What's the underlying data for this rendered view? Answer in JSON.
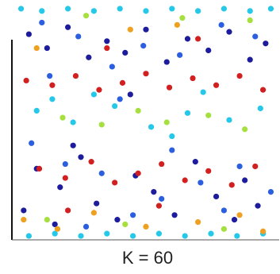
{
  "chart_data": {
    "type": "scatter",
    "title": "K = 60",
    "xlim": [
      0,
      1
    ],
    "ylim": [
      0,
      1
    ],
    "series": [
      {
        "color": "#1c1c9c",
        "x": [
          0.05,
          0.12,
          0.2,
          0.28,
          0.35,
          0.42,
          0.5,
          0.58,
          0.66,
          0.74,
          0.82,
          0.9,
          0.96,
          0.08,
          0.17,
          0.31,
          0.46,
          0.61,
          0.77,
          0.88,
          0.03,
          0.15,
          0.25,
          0.39,
          0.53,
          0.69,
          0.84,
          0.93,
          0.44,
          0.22
        ],
        "values": [
          0.88,
          0.82,
          0.91,
          0.78,
          0.85,
          0.8,
          0.9,
          0.76,
          0.86,
          0.81,
          0.89,
          0.77,
          0.84,
          0.3,
          0.22,
          0.15,
          0.27,
          0.1,
          0.18,
          0.25,
          0.12,
          0.06,
          0.35,
          0.08,
          0.2,
          0.33,
          0.08,
          0.14,
          0.62,
          0.4
        ]
      },
      {
        "color": "#2b5fe0",
        "x": [
          0.1,
          0.24,
          0.37,
          0.49,
          0.63,
          0.79,
          0.92,
          0.06,
          0.19,
          0.33,
          0.56,
          0.71,
          0.86,
          0.98,
          0.27,
          0.45,
          0.6,
          0.8,
          0.13,
          0.4
        ],
        "values": [
          0.93,
          0.87,
          0.74,
          0.83,
          0.79,
          0.92,
          0.87,
          0.41,
          0.32,
          0.28,
          0.17,
          0.24,
          0.31,
          0.2,
          0.05,
          0.1,
          0.38,
          0.12,
          0.7,
          0.6
        ]
      },
      {
        "color": "#25c8e8",
        "x": [
          0.02,
          0.1,
          0.2,
          0.3,
          0.4,
          0.5,
          0.6,
          0.7,
          0.8,
          0.9,
          0.98,
          0.05,
          0.15,
          0.25,
          0.35,
          0.45,
          0.55,
          0.65,
          0.75,
          0.85,
          0.95,
          0.08,
          0.22,
          0.38,
          0.52,
          0.66,
          0.82,
          0.94,
          0.3,
          0.6,
          0.14,
          0.72
        ],
        "values": [
          0.99,
          0.98,
          0.99,
          0.98,
          0.99,
          0.98,
          0.99,
          0.98,
          0.99,
          0.98,
          0.99,
          0.01,
          0.02,
          0.01,
          0.02,
          0.01,
          0.02,
          0.01,
          0.02,
          0.01,
          0.02,
          0.55,
          0.5,
          0.57,
          0.48,
          0.54,
          0.51,
          0.56,
          0.62,
          0.44,
          0.6,
          0.63
        ]
      },
      {
        "color": "#a6e040",
        "x": [
          0.18,
          0.33,
          0.47,
          0.58,
          0.74,
          0.88,
          0.27,
          0.64,
          0.9,
          0.42,
          0.12,
          0.8
        ],
        "values": [
          0.52,
          0.49,
          0.55,
          0.5,
          0.53,
          0.47,
          0.96,
          0.95,
          0.94,
          0.06,
          0.08,
          0.04
        ]
      },
      {
        "color": "#f0a020",
        "x": [
          0.03,
          0.16,
          0.3,
          0.5,
          0.7,
          0.86,
          0.95,
          0.44,
          0.08,
          0.62
        ],
        "values": [
          0.08,
          0.04,
          0.11,
          0.05,
          0.07,
          0.1,
          0.03,
          0.9,
          0.82,
          0.92
        ]
      },
      {
        "color": "#d22020",
        "x": [
          0.04,
          0.14,
          0.23,
          0.32,
          0.41,
          0.5,
          0.59,
          0.68,
          0.77,
          0.86,
          0.95,
          0.09,
          0.19,
          0.29,
          0.38,
          0.47,
          0.56,
          0.65,
          0.74,
          0.83,
          0.92,
          0.35,
          0.7,
          0.2,
          0.55
        ],
        "values": [
          0.68,
          0.66,
          0.7,
          0.64,
          0.67,
          0.71,
          0.65,
          0.69,
          0.66,
          0.7,
          0.64,
          0.3,
          0.26,
          0.33,
          0.24,
          0.28,
          0.32,
          0.25,
          0.29,
          0.23,
          0.31,
          0.82,
          0.86,
          0.12,
          0.14
        ]
      }
    ]
  }
}
